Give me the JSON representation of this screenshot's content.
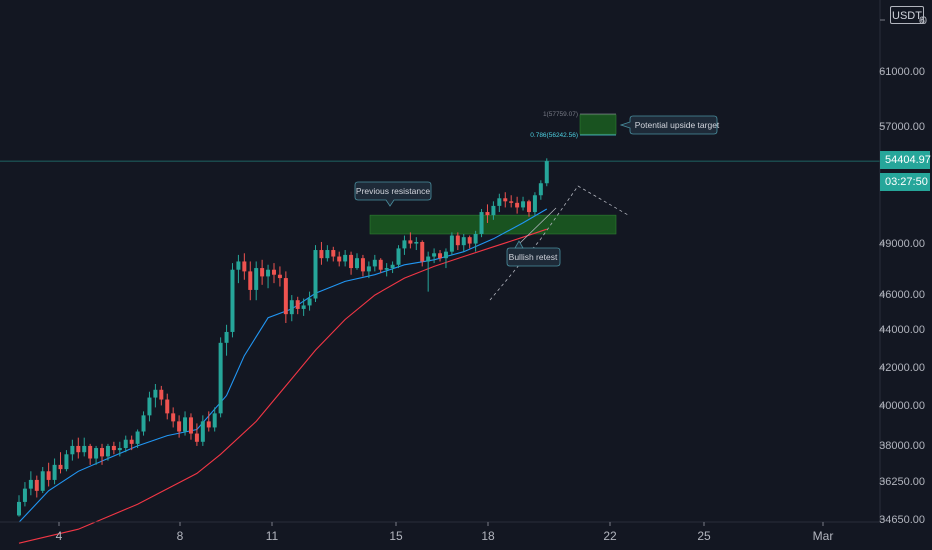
{
  "price_axis": {
    "unit": "USDT",
    "tick_labels": [
      "6",
      "61000.00",
      "57000.00",
      "49000.00",
      "46000.00",
      "44000.00",
      "42000.00",
      "40000.00",
      "38000.00",
      "36250.00",
      "34650.00"
    ],
    "top_right_label": "0",
    "current_price": "54404.97",
    "countdown": "03:27:50"
  },
  "time_axis": {
    "tick_labels": [
      "4",
      "8",
      "11",
      "15",
      "18",
      "22",
      "25",
      "Mar"
    ]
  },
  "annotations": {
    "previous_resistance": "Previous resistance",
    "bullish_retest": "Bullish retest",
    "potential_target": "Potential upside target",
    "fib_1": "1(57759.07)",
    "fib_0786": "0.786(56242.56)"
  },
  "colors": {
    "background": "#131722",
    "up_candle": "#26a69a",
    "down_candle": "#ef5350",
    "fast_ma": "#2196f3",
    "slow_ma": "#f23645",
    "zone": "#1b5e20",
    "grid_text": "#b2b5be"
  },
  "chart_data": {
    "type": "candlestick",
    "title": "",
    "xlabel": "",
    "ylabel": "",
    "ylim": [
      34650,
      63000
    ],
    "y_scale": "log",
    "grid": false,
    "x_ticks": [
      "4",
      "8",
      "11",
      "15",
      "18",
      "22",
      "25",
      "Mar"
    ],
    "candles_ohlc": [
      [
        34700,
        35600,
        34650,
        35300
      ],
      [
        35300,
        36200,
        35100,
        35900
      ],
      [
        35900,
        36700,
        35600,
        36300
      ],
      [
        36300,
        36500,
        35500,
        35800
      ],
      [
        35800,
        36900,
        35700,
        36700
      ],
      [
        36700,
        37100,
        36000,
        36300
      ],
      [
        36300,
        37300,
        36100,
        37000
      ],
      [
        37000,
        37600,
        36600,
        36800
      ],
      [
        36800,
        37700,
        36700,
        37500
      ],
      [
        37500,
        38200,
        37200,
        37900
      ],
      [
        37900,
        38300,
        37300,
        37600
      ],
      [
        37600,
        38300,
        37400,
        37900
      ],
      [
        37900,
        38000,
        37000,
        37300
      ],
      [
        37300,
        37900,
        37000,
        37800
      ],
      [
        37800,
        38000,
        37000,
        37400
      ],
      [
        37400,
        38000,
        37200,
        37900
      ],
      [
        37900,
        38100,
        37500,
        37700
      ],
      [
        37700,
        38100,
        37400,
        37800
      ],
      [
        37800,
        38400,
        37600,
        38200
      ],
      [
        38200,
        38400,
        37700,
        38000
      ],
      [
        38000,
        38700,
        37800,
        38600
      ],
      [
        38600,
        39600,
        38400,
        39400
      ],
      [
        39400,
        40600,
        39100,
        40300
      ],
      [
        40300,
        41000,
        39800,
        40700
      ],
      [
        40700,
        40900,
        39900,
        40200
      ],
      [
        40200,
        40500,
        39200,
        39500
      ],
      [
        39500,
        39800,
        38800,
        39100
      ],
      [
        39100,
        39400,
        38300,
        38600
      ],
      [
        38600,
        39600,
        38400,
        39300
      ],
      [
        39300,
        39500,
        38200,
        38500
      ],
      [
        38500,
        39000,
        37900,
        38100
      ],
      [
        38100,
        39400,
        37900,
        39100
      ],
      [
        39100,
        39600,
        38600,
        38800
      ],
      [
        38800,
        39800,
        38600,
        39500
      ],
      [
        39500,
        43500,
        39300,
        43200
      ],
      [
        43200,
        44200,
        42500,
        43800
      ],
      [
        43800,
        47800,
        43500,
        47400
      ],
      [
        47400,
        48300,
        46600,
        47900
      ],
      [
        47900,
        48400,
        46800,
        47300
      ],
      [
        47300,
        47900,
        45600,
        46200
      ],
      [
        46200,
        47900,
        45600,
        47500
      ],
      [
        47500,
        48000,
        46500,
        47000
      ],
      [
        47000,
        47700,
        46300,
        47400
      ],
      [
        47400,
        47800,
        46600,
        47100
      ],
      [
        47100,
        47600,
        46400,
        46900
      ],
      [
        46900,
        47300,
        44300,
        44800
      ],
      [
        44800,
        45900,
        44400,
        45600
      ],
      [
        45600,
        45800,
        44800,
        45100
      ],
      [
        45100,
        45700,
        44700,
        45300
      ],
      [
        45300,
        46100,
        45000,
        45700
      ],
      [
        45700,
        48900,
        45500,
        48600
      ],
      [
        48600,
        49100,
        47700,
        48100
      ],
      [
        48100,
        48900,
        47900,
        48600
      ],
      [
        48600,
        48800,
        47900,
        48200
      ],
      [
        48200,
        48500,
        47600,
        47900
      ],
      [
        47900,
        48600,
        47600,
        48300
      ],
      [
        48300,
        48500,
        47100,
        47500
      ],
      [
        47500,
        48400,
        47400,
        48100
      ],
      [
        48100,
        48300,
        47000,
        47300
      ],
      [
        47300,
        47900,
        46900,
        47600
      ],
      [
        47600,
        48300,
        47300,
        48000
      ],
      [
        48000,
        48100,
        47200,
        47400
      ],
      [
        47400,
        47800,
        47000,
        47500
      ],
      [
        47500,
        47900,
        47200,
        47700
      ],
      [
        47700,
        48900,
        47500,
        48700
      ],
      [
        48700,
        49500,
        48300,
        49200
      ],
      [
        49200,
        49700,
        48700,
        49000
      ],
      [
        49000,
        49400,
        48600,
        49100
      ],
      [
        49100,
        49200,
        47600,
        47900
      ],
      [
        47900,
        48500,
        46100,
        48200
      ],
      [
        48200,
        48700,
        47800,
        48400
      ],
      [
        48400,
        48600,
        47900,
        48100
      ],
      [
        48100,
        48700,
        47500,
        48500
      ],
      [
        48500,
        49700,
        48300,
        49500
      ],
      [
        49500,
        49700,
        48600,
        48900
      ],
      [
        48900,
        49600,
        48500,
        49400
      ],
      [
        49400,
        49500,
        48700,
        49000
      ],
      [
        49000,
        49800,
        48500,
        49600
      ],
      [
        49600,
        51200,
        49400,
        51000
      ],
      [
        51000,
        51500,
        50300,
        50800
      ],
      [
        50800,
        51700,
        50500,
        51400
      ],
      [
        51400,
        52200,
        51000,
        51900
      ],
      [
        51900,
        52300,
        51300,
        51700
      ],
      [
        51700,
        52100,
        51300,
        51600
      ],
      [
        51600,
        52000,
        50900,
        51300
      ],
      [
        51300,
        52000,
        51100,
        51700
      ],
      [
        51700,
        51800,
        50700,
        51000
      ],
      [
        51000,
        52300,
        50800,
        52100
      ],
      [
        52100,
        53100,
        51800,
        52900
      ],
      [
        52900,
        54600,
        52700,
        54405
      ]
    ],
    "moving_averages": [
      {
        "name": "",
        "color": "#2196f3",
        "x_index": [
          0,
          5,
          10,
          15,
          20,
          25,
          30,
          35,
          38,
          42,
          46,
          50,
          55,
          60,
          65,
          70,
          75,
          80,
          85,
          89
        ],
        "y": [
          34400,
          35800,
          36700,
          37300,
          37900,
          38400,
          38700,
          40400,
          42500,
          44600,
          45100,
          46000,
          46700,
          47100,
          47700,
          48000,
          48500,
          49300,
          50300,
          51200
        ]
      },
      {
        "name": "",
        "color": "#f23645",
        "x_index": [
          0,
          10,
          20,
          30,
          34,
          40,
          45,
          50,
          55,
          60,
          65,
          70,
          75,
          80,
          85,
          89
        ],
        "y": [
          33500,
          34100,
          35200,
          36600,
          37500,
          39100,
          40900,
          42800,
          44500,
          45900,
          46900,
          47600,
          48200,
          48800,
          49400,
          49900
        ]
      }
    ],
    "zones": [
      {
        "from_index": 59,
        "to_index": 98,
        "low": 49600,
        "high": 50800
      },
      {
        "from_index": 94,
        "to_index": 99,
        "low": 56300,
        "high": 57700
      }
    ],
    "fib_levels": [
      {
        "label": "1(57759.07)",
        "value": 57759.07
      },
      {
        "label": "0.786(56242.56)",
        "value": 56242.56
      }
    ],
    "current_price": 54404.97
  }
}
